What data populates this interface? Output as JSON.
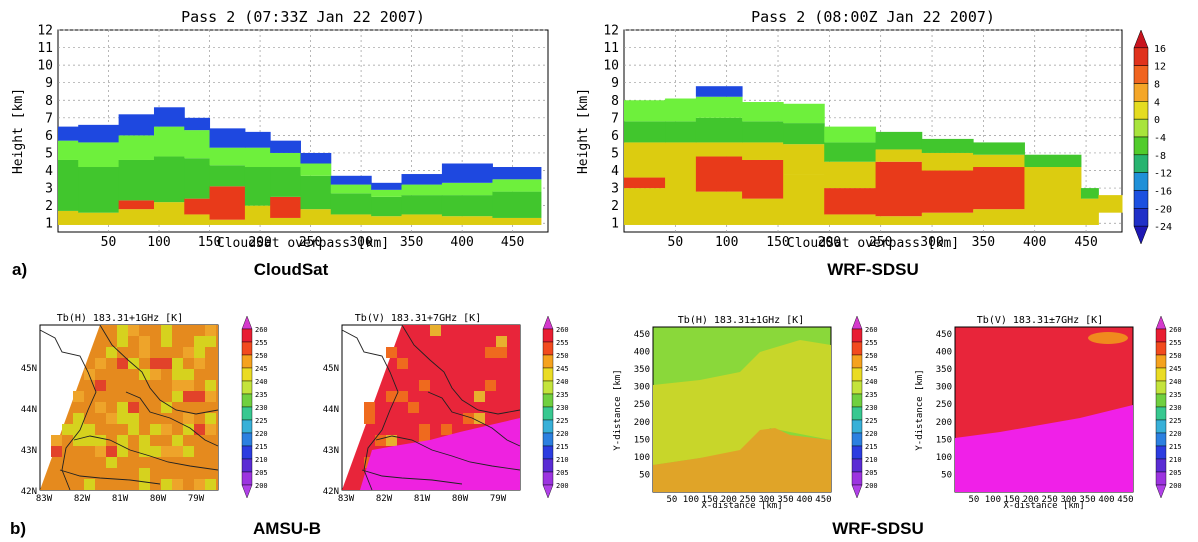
{
  "figure": {
    "row_a_label": "a)",
    "row_b_label": "b)",
    "row_a_captions": [
      "CloudSat",
      "WRF-SDSU"
    ],
    "row_b_captions": [
      "AMSU-B",
      "WRF-SDSU"
    ]
  },
  "chart_data": [
    {
      "type": "heatmap",
      "title": "Pass 2 (07:33Z Jan 22 2007)",
      "xlabel": "CloudSat overpass [km]",
      "ylabel": "Height [km]",
      "xlim": [
        0,
        485
      ],
      "ylim": [
        0.5,
        12
      ],
      "xticks": [
        "50",
        "100",
        "150",
        "200",
        "250",
        "300",
        "350",
        "400",
        "450"
      ],
      "yticks": [
        "1",
        "2",
        "3",
        "4",
        "5",
        "6",
        "7",
        "8",
        "9",
        "10",
        "11",
        "12"
      ],
      "grid": true,
      "colorbar_shared": true,
      "columns": [
        {
          "x0": 0,
          "x1": 20,
          "top": 6.5,
          "bands": [
            [
              0.9,
              1.7,
              "#dccc10"
            ],
            [
              1.7,
              4.6,
              "#41c62d"
            ],
            [
              4.6,
              5.7,
              "#6ef03c"
            ],
            [
              5.7,
              6.5,
              "#1e48e0"
            ]
          ]
        },
        {
          "x0": 20,
          "x1": 60,
          "top": 6.6,
          "bands": [
            [
              0.9,
              1.6,
              "#dccc10"
            ],
            [
              1.6,
              4.2,
              "#41c62d"
            ],
            [
              4.2,
              5.6,
              "#6ef03c"
            ],
            [
              5.6,
              6.6,
              "#1e48e0"
            ]
          ]
        },
        {
          "x0": 60,
          "x1": 95,
          "top": 7.2,
          "bands": [
            [
              0.9,
              1.8,
              "#dccc10"
            ],
            [
              1.8,
              2.3,
              "#e83a1a"
            ],
            [
              2.3,
              4.6,
              "#41c62d"
            ],
            [
              4.6,
              6.0,
              "#6ef03c"
            ],
            [
              6.0,
              7.2,
              "#1e48e0"
            ]
          ]
        },
        {
          "x0": 95,
          "x1": 125,
          "top": 7.6,
          "bands": [
            [
              0.9,
              2.2,
              "#dccc10"
            ],
            [
              2.2,
              4.8,
              "#41c62d"
            ],
            [
              4.8,
              6.5,
              "#6ef03c"
            ],
            [
              6.5,
              7.6,
              "#1e48e0"
            ]
          ]
        },
        {
          "x0": 125,
          "x1": 150,
          "top": 7.0,
          "bands": [
            [
              0.9,
              1.5,
              "#dccc10"
            ],
            [
              1.5,
              2.4,
              "#e83a1a"
            ],
            [
              2.4,
              4.7,
              "#41c62d"
            ],
            [
              4.7,
              6.3,
              "#6ef03c"
            ],
            [
              6.3,
              7.0,
              "#1e48e0"
            ]
          ]
        },
        {
          "x0": 150,
          "x1": 185,
          "top": 6.4,
          "bands": [
            [
              0.9,
              1.2,
              "#dccc10"
            ],
            [
              1.2,
              3.1,
              "#e83a1a"
            ],
            [
              3.1,
              4.3,
              "#41c62d"
            ],
            [
              4.3,
              5.3,
              "#6ef03c"
            ],
            [
              5.3,
              6.4,
              "#1e48e0"
            ]
          ]
        },
        {
          "x0": 185,
          "x1": 210,
          "top": 6.2,
          "bands": [
            [
              0.9,
              2.0,
              "#dccc10"
            ],
            [
              2.0,
              4.2,
              "#41c62d"
            ],
            [
              4.2,
              5.3,
              "#6ef03c"
            ],
            [
              5.3,
              6.2,
              "#1e48e0"
            ]
          ]
        },
        {
          "x0": 210,
          "x1": 240,
          "top": 5.7,
          "bands": [
            [
              0.9,
              1.3,
              "#dccc10"
            ],
            [
              1.3,
              2.5,
              "#e83a1a"
            ],
            [
              2.5,
              4.2,
              "#41c62d"
            ],
            [
              4.2,
              5.0,
              "#6ef03c"
            ],
            [
              5.0,
              5.7,
              "#1e48e0"
            ]
          ]
        },
        {
          "x0": 240,
          "x1": 270,
          "top": 5.0,
          "bands": [
            [
              0.9,
              1.8,
              "#dccc10"
            ],
            [
              1.8,
              3.7,
              "#41c62d"
            ],
            [
              3.7,
              4.4,
              "#6ef03c"
            ],
            [
              4.4,
              5.0,
              "#1e48e0"
            ]
          ]
        },
        {
          "x0": 270,
          "x1": 310,
          "top": 3.7,
          "bands": [
            [
              0.9,
              1.5,
              "#dccc10"
            ],
            [
              1.5,
              2.7,
              "#41c62d"
            ],
            [
              2.7,
              3.2,
              "#6ef03c"
            ],
            [
              3.2,
              3.7,
              "#1e48e0"
            ]
          ]
        },
        {
          "x0": 310,
          "x1": 340,
          "top": 3.3,
          "bands": [
            [
              0.9,
              1.4,
              "#dccc10"
            ],
            [
              1.4,
              2.5,
              "#41c62d"
            ],
            [
              2.5,
              2.9,
              "#6ef03c"
            ],
            [
              2.9,
              3.3,
              "#1e48e0"
            ]
          ]
        },
        {
          "x0": 340,
          "x1": 380,
          "top": 3.8,
          "bands": [
            [
              0.9,
              1.5,
              "#dccc10"
            ],
            [
              1.5,
              2.6,
              "#41c62d"
            ],
            [
              2.6,
              3.2,
              "#6ef03c"
            ],
            [
              3.2,
              3.8,
              "#1e48e0"
            ]
          ]
        },
        {
          "x0": 380,
          "x1": 430,
          "top": 4.4,
          "bands": [
            [
              0.9,
              1.4,
              "#dccc10"
            ],
            [
              1.4,
              2.6,
              "#41c62d"
            ],
            [
              2.6,
              3.3,
              "#6ef03c"
            ],
            [
              3.3,
              4.4,
              "#1e48e0"
            ]
          ]
        },
        {
          "x0": 430,
          "x1": 478,
          "top": 4.2,
          "bands": [
            [
              0.9,
              1.3,
              "#dccc10"
            ],
            [
              1.3,
              2.8,
              "#41c62d"
            ],
            [
              2.8,
              3.5,
              "#6ef03c"
            ],
            [
              3.5,
              4.2,
              "#1e48e0"
            ]
          ]
        }
      ]
    },
    {
      "type": "heatmap",
      "title": "Pass 2 (08:00Z Jan 22 2007)",
      "xlabel": "CloudSat overpass [km]",
      "ylabel": "Height [km]",
      "xlim": [
        0,
        485
      ],
      "ylim": [
        0.5,
        12
      ],
      "xticks": [
        "50",
        "100",
        "150",
        "200",
        "250",
        "300",
        "350",
        "400",
        "450"
      ],
      "yticks": [
        "1",
        "2",
        "3",
        "4",
        "5",
        "6",
        "7",
        "8",
        "9",
        "10",
        "11",
        "12"
      ],
      "grid": true,
      "colorbar": {
        "levels": [
          "16",
          "12",
          "8",
          "4",
          "0",
          "-4",
          "-8",
          "-12",
          "-16",
          "-20",
          "-24"
        ],
        "colors": [
          "#c8141e",
          "#e0321c",
          "#f06420",
          "#f4a628",
          "#e4dc20",
          "#a8e43c",
          "#52cc2c",
          "#28b470",
          "#2090d8",
          "#1c50e0",
          "#2030c8",
          "#1e18b4"
        ]
      },
      "columns": [
        {
          "x0": 0,
          "x1": 40,
          "top": 8.0,
          "bands": [
            [
              0.9,
              3.0,
              "#dccc10"
            ],
            [
              3.0,
              3.6,
              "#e83a1a"
            ],
            [
              3.6,
              5.6,
              "#dccc10"
            ],
            [
              5.6,
              6.8,
              "#41c62d"
            ],
            [
              6.8,
              8.0,
              "#6ef03c"
            ]
          ]
        },
        {
          "x0": 40,
          "x1": 70,
          "top": 8.1,
          "bands": [
            [
              0.9,
              5.6,
              "#dccc10"
            ],
            [
              5.6,
              6.8,
              "#41c62d"
            ],
            [
              6.8,
              8.1,
              "#6ef03c"
            ]
          ]
        },
        {
          "x0": 70,
          "x1": 115,
          "top": 8.8,
          "bands": [
            [
              0.9,
              2.8,
              "#dccc10"
            ],
            [
              2.8,
              4.8,
              "#e83a1a"
            ],
            [
              4.8,
              5.6,
              "#dccc10"
            ],
            [
              5.6,
              7.0,
              "#41c62d"
            ],
            [
              7.0,
              8.2,
              "#6ef03c"
            ],
            [
              8.2,
              8.8,
              "#1e48e0"
            ]
          ]
        },
        {
          "x0": 115,
          "x1": 155,
          "top": 7.9,
          "bands": [
            [
              0.9,
              2.4,
              "#dccc10"
            ],
            [
              2.4,
              4.6,
              "#e83a1a"
            ],
            [
              4.6,
              5.6,
              "#dccc10"
            ],
            [
              5.6,
              6.8,
              "#41c62d"
            ],
            [
              6.8,
              7.9,
              "#6ef03c"
            ]
          ]
        },
        {
          "x0": 155,
          "x1": 195,
          "top": 7.8,
          "bands": [
            [
              0.9,
              3.8,
              "#dccc10"
            ],
            [
              3.8,
              5.5,
              "#dccc10"
            ],
            [
              5.5,
              6.7,
              "#41c62d"
            ],
            [
              6.7,
              7.8,
              "#6ef03c"
            ]
          ]
        },
        {
          "x0": 195,
          "x1": 245,
          "top": 6.5,
          "bands": [
            [
              0.9,
              1.5,
              "#dccc10"
            ],
            [
              1.5,
              3.0,
              "#e83a1a"
            ],
            [
              3.0,
              4.5,
              "#dccc10"
            ],
            [
              4.5,
              5.6,
              "#41c62d"
            ],
            [
              5.6,
              6.5,
              "#6ef03c"
            ]
          ]
        },
        {
          "x0": 245,
          "x1": 290,
          "top": 6.2,
          "bands": [
            [
              0.9,
              1.4,
              "#dccc10"
            ],
            [
              1.4,
              4.5,
              "#e83a1a"
            ],
            [
              4.5,
              5.2,
              "#dccc10"
            ],
            [
              5.2,
              6.2,
              "#41c62d"
            ]
          ]
        },
        {
          "x0": 290,
          "x1": 340,
          "top": 5.8,
          "bands": [
            [
              0.9,
              1.6,
              "#dccc10"
            ],
            [
              1.6,
              4.0,
              "#e83a1a"
            ],
            [
              4.0,
              5.0,
              "#dccc10"
            ],
            [
              5.0,
              5.8,
              "#41c62d"
            ]
          ]
        },
        {
          "x0": 340,
          "x1": 390,
          "top": 5.6,
          "bands": [
            [
              0.9,
              1.8,
              "#dccc10"
            ],
            [
              1.8,
              4.2,
              "#e83a1a"
            ],
            [
              4.2,
              4.9,
              "#dccc10"
            ],
            [
              4.9,
              5.6,
              "#41c62d"
            ]
          ]
        },
        {
          "x0": 390,
          "x1": 445,
          "top": 4.9,
          "bands": [
            [
              0.9,
              4.2,
              "#dccc10"
            ],
            [
              4.2,
              4.9,
              "#41c62d"
            ]
          ]
        },
        {
          "x0": 445,
          "x1": 462,
          "top": 3.0,
          "bands": [
            [
              0.9,
              2.4,
              "#dccc10"
            ],
            [
              2.4,
              3.0,
              "#41c62d"
            ]
          ]
        },
        {
          "x0": 462,
          "x1": 485,
          "top": 2.6,
          "bands": [
            [
              1.6,
              2.6,
              "#dccc10"
            ]
          ]
        }
      ]
    },
    {
      "type": "heatmap",
      "title": "Tb(H)  183.31+1GHz [K]",
      "xticks": [
        "83W",
        "82W",
        "81W",
        "80W",
        "79W"
      ],
      "yticks": [
        "42N",
        "43N",
        "44N",
        "45N"
      ],
      "fill": "#e58a1e"
    },
    {
      "type": "heatmap",
      "title": "Tb(V)  183.31+7GHz [K]",
      "xticks": [
        "83W",
        "82W",
        "81W",
        "80W",
        "79W"
      ],
      "yticks": [
        "42N",
        "43N",
        "44N",
        "45N"
      ],
      "fill": "#e8253a"
    },
    {
      "type": "heatmap",
      "title": "Tb(H)  183.31±1GHz [K]",
      "xlabel": "X-distance [km]",
      "ylabel": "Y-distance [km]",
      "xticks": [
        "50",
        "100",
        "150",
        "200",
        "250",
        "300",
        "350",
        "400",
        "450"
      ],
      "yticks": [
        "50",
        "100",
        "150",
        "200",
        "250",
        "300",
        "350",
        "400",
        "450"
      ]
    },
    {
      "type": "heatmap",
      "title": "Tb(V)  183.31±7GHz [K]",
      "xlabel": "X-distance [km]",
      "ylabel": "Y-distance [km]",
      "xticks": [
        "50",
        "100",
        "150",
        "200",
        "250",
        "300",
        "350",
        "400",
        "450"
      ],
      "yticks": [
        "50",
        "100",
        "150",
        "200",
        "250",
        "300",
        "350",
        "400",
        "450"
      ]
    }
  ],
  "tb_colorbar": {
    "levels": [
      "260",
      "255",
      "250",
      "245",
      "240",
      "235",
      "230",
      "225",
      "220",
      "215",
      "210",
      "205",
      "200"
    ],
    "colors": [
      "#d43acc",
      "#e81e32",
      "#f24a1e",
      "#f5a21e",
      "#eadc24",
      "#c4e43c",
      "#70d040",
      "#38c890",
      "#38b0d8",
      "#2c80e0",
      "#2c3ce0",
      "#5a2cd4",
      "#9c34e0",
      "#b040e8"
    ]
  }
}
